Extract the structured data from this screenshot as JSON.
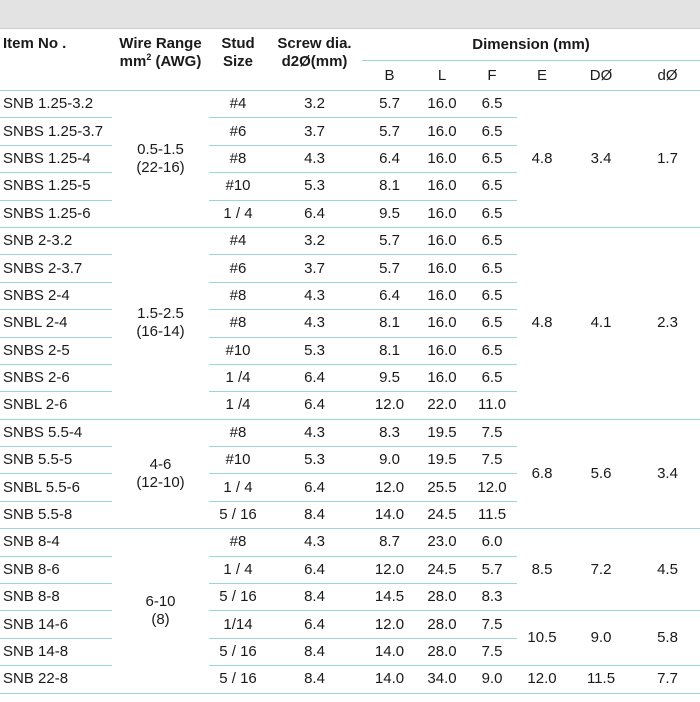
{
  "header": {
    "item_no": "Item No .",
    "wire_range_line1": "Wire Range",
    "wire_range_unit": "mm",
    "wire_range_sup": "2",
    "wire_range_awg": " (AWG)",
    "stud_line1": "Stud",
    "stud_line2": "Size",
    "screw_line1": "Screw dia.",
    "screw_line2": "d2Ø(mm)",
    "dimension": "Dimension",
    "dimension_unit": " (mm)",
    "cols": [
      "B",
      "L",
      "F",
      "E",
      "DØ",
      "dØ"
    ]
  },
  "rows": [
    {
      "item": "SNB 1.25-3.2",
      "stud": "#4",
      "screw": "3.2",
      "B": "5.7",
      "L": "16.0",
      "F": "6.5"
    },
    {
      "item": "SNBS 1.25-3.7",
      "stud": "#6",
      "screw": "3.7",
      "B": "5.7",
      "L": "16.0",
      "F": "6.5"
    },
    {
      "item": "SNBS 1.25-4",
      "stud": "#8",
      "screw": "4.3",
      "B": "6.4",
      "L": "16.0",
      "F": "6.5"
    },
    {
      "item": "SNBS 1.25-5",
      "stud": "#10",
      "screw": "5.3",
      "B": "8.1",
      "L": "16.0",
      "F": "6.5"
    },
    {
      "item": "SNBS 1.25-6",
      "stud": "1 / 4",
      "screw": "6.4",
      "B": "9.5",
      "L": "16.0",
      "F": "6.5"
    },
    {
      "item": "SNB 2-3.2",
      "stud": "#4",
      "screw": "3.2",
      "B": "5.7",
      "L": "16.0",
      "F": "6.5"
    },
    {
      "item": "SNBS 2-3.7",
      "stud": "#6",
      "screw": "3.7",
      "B": "5.7",
      "L": "16.0",
      "F": "6.5"
    },
    {
      "item": "SNBS 2-4",
      "stud": "#8",
      "screw": "4.3",
      "B": "6.4",
      "L": "16.0",
      "F": "6.5"
    },
    {
      "item": "SNBL 2-4",
      "stud": "#8",
      "screw": "4.3",
      "B": "8.1",
      "L": "16.0",
      "F": "6.5"
    },
    {
      "item": "SNBS 2-5",
      "stud": "#10",
      "screw": "5.3",
      "B": "8.1",
      "L": "16.0",
      "F": "6.5"
    },
    {
      "item": "SNBS 2-6",
      "stud": "1 /4",
      "screw": "6.4",
      "B": "9.5",
      "L": "16.0",
      "F": "6.5"
    },
    {
      "item": "SNBL 2-6",
      "stud": "1 /4",
      "screw": "6.4",
      "B": "12.0",
      "L": "22.0",
      "F": "11.0"
    },
    {
      "item": "SNBS 5.5-4",
      "stud": "#8",
      "screw": "4.3",
      "B": "8.3",
      "L": "19.5",
      "F": "7.5"
    },
    {
      "item": "SNB 5.5-5",
      "stud": "#10",
      "screw": "5.3",
      "B": "9.0",
      "L": "19.5",
      "F": "7.5"
    },
    {
      "item": "SNBL 5.5-6",
      "stud": "1 / 4",
      "screw": "6.4",
      "B": "12.0",
      "L": "25.5",
      "F": "12.0"
    },
    {
      "item": "SNB 5.5-8",
      "stud": "5 / 16",
      "screw": "8.4",
      "B": "14.0",
      "L": "24.5",
      "F": "11.5"
    },
    {
      "item": "SNB 8-4",
      "stud": "#8",
      "screw": "4.3",
      "B": "8.7",
      "L": "23.0",
      "F": "6.0"
    },
    {
      "item": "SNB 8-6",
      "stud": "1 / 4",
      "screw": "6.4",
      "B": "12.0",
      "L": "24.5",
      "F": "5.7"
    },
    {
      "item": "SNB 8-8",
      "stud": "5 / 16",
      "screw": "8.4",
      "B": "14.5",
      "L": "28.0",
      "F": "8.3"
    },
    {
      "item": "SNB 14-6",
      "stud": "1/14",
      "screw": "6.4",
      "B": "12.0",
      "L": "28.0",
      "F": "7.5"
    },
    {
      "item": "SNB 14-8",
      "stud": "5 / 16",
      "screw": "8.4",
      "B": "14.0",
      "L": "28.0",
      "F": "7.5"
    },
    {
      "item": "SNB 22-8",
      "stud": "5 / 16",
      "screw": "8.4",
      "B": "14.0",
      "L": "34.0",
      "F": "9.0"
    }
  ],
  "wire_groups": [
    {
      "range": "0.5-1.5",
      "awg": "(22-16)"
    },
    {
      "range": "1.5-2.5",
      "awg": "(16-14)"
    },
    {
      "range": "4-6",
      "awg": "(12-10)"
    },
    {
      "range": "6-10",
      "awg": "(8)"
    }
  ],
  "dim_groups": [
    {
      "E": "4.8",
      "D": "3.4",
      "d": "1.7"
    },
    {
      "E": "4.8",
      "D": "4.1",
      "d": "2.3"
    },
    {
      "E": "6.8",
      "D": "5.6",
      "d": "3.4"
    },
    {
      "E": "8.5",
      "D": "7.2",
      "d": "4.5"
    },
    {
      "E": "10.5",
      "D": "9.0",
      "d": "5.8"
    },
    {
      "E": "12.0",
      "D": "11.5",
      "d": "7.7"
    }
  ]
}
